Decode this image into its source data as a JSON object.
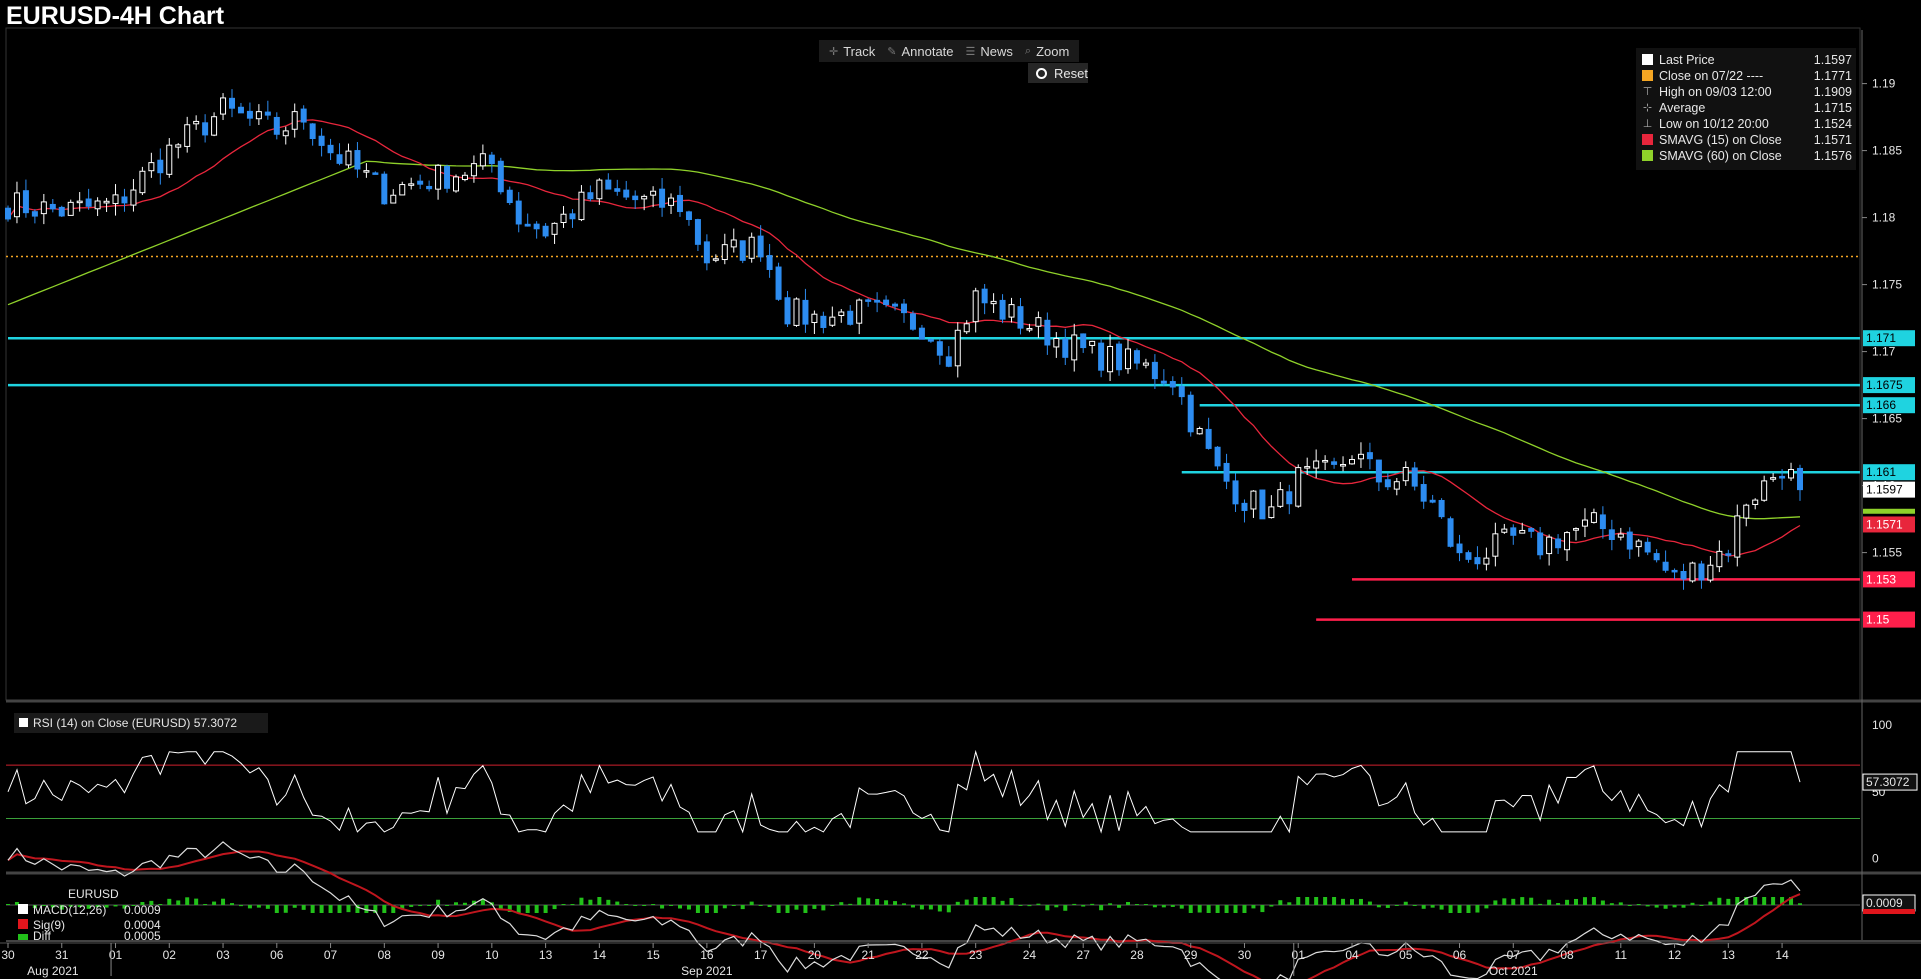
{
  "title": "EURUSD-4H Chart",
  "toolbar": {
    "track": "Track",
    "annotate": "Annotate",
    "news": "News",
    "zoom": "Zoom",
    "reset": "Reset"
  },
  "legend": [
    {
      "label": "Last Price",
      "value": "1.1597",
      "color": "#ffffff",
      "kind": "swatch"
    },
    {
      "label": "Close on 07/22 ----",
      "value": "1.1771",
      "color": "#f5a623",
      "kind": "swatch"
    },
    {
      "label": "High on 09/03 12:00",
      "value": "1.1909",
      "color": "#aaaaaa",
      "kind": "high-icon"
    },
    {
      "label": "Average",
      "value": "1.1715",
      "color": "#aaaaaa",
      "kind": "average-icon"
    },
    {
      "label": "Low on 10/12 20:00",
      "value": "1.1524",
      "color": "#aaaaaa",
      "kind": "low-icon"
    },
    {
      "label": "SMAVG (15)  on Close",
      "value": "1.1571",
      "color": "#e8263c",
      "kind": "swatch"
    },
    {
      "label": "SMAVG (60)  on Close",
      "value": "1.1576",
      "color": "#8fd12a",
      "kind": "swatch"
    }
  ],
  "colors": {
    "up_candle": "#ffffff",
    "down_candle": "#2d8cf0",
    "sma15": "#e8263c",
    "sma60": "#8fd12a",
    "resistance": "#1fd3e0",
    "support": "#ff1f4b",
    "close_line": "#f5a623",
    "panel_divider": "#444444"
  },
  "chart_data": {
    "type": "candlestick",
    "symbol": "EURUSD",
    "timeframe": "4H",
    "ylim": [
      1.144,
      1.194
    ],
    "y_ticks": [
      "1.19",
      "1.185",
      "1.18",
      "1.175",
      "1.17",
      "1.165",
      "1.16",
      "1.155"
    ],
    "x_ticks": [
      {
        "label": "30",
        "index": 0
      },
      {
        "label": "31",
        "index": 6
      },
      {
        "label": "01",
        "index": 12
      },
      {
        "label": "02",
        "index": 18
      },
      {
        "label": "03",
        "index": 24
      },
      {
        "label": "06",
        "index": 30
      },
      {
        "label": "07",
        "index": 36
      },
      {
        "label": "08",
        "index": 42
      },
      {
        "label": "09",
        "index": 48
      },
      {
        "label": "10",
        "index": 54
      },
      {
        "label": "13",
        "index": 60
      },
      {
        "label": "14",
        "index": 66
      },
      {
        "label": "15",
        "index": 72
      },
      {
        "label": "16",
        "index": 78
      },
      {
        "label": "17",
        "index": 84
      },
      {
        "label": "20",
        "index": 90
      },
      {
        "label": "21",
        "index": 96
      },
      {
        "label": "22",
        "index": 102
      },
      {
        "label": "23",
        "index": 108
      },
      {
        "label": "24",
        "index": 114
      },
      {
        "label": "27",
        "index": 120
      },
      {
        "label": "28",
        "index": 126
      },
      {
        "label": "29",
        "index": 132
      },
      {
        "label": "30",
        "index": 138
      },
      {
        "label": "01",
        "index": 144
      },
      {
        "label": "04",
        "index": 150
      },
      {
        "label": "05",
        "index": 156
      },
      {
        "label": "06",
        "index": 162
      },
      {
        "label": "07",
        "index": 168
      },
      {
        "label": "08",
        "index": 174
      },
      {
        "label": "11",
        "index": 180
      },
      {
        "label": "12",
        "index": 186
      },
      {
        "label": "13",
        "index": 192
      },
      {
        "label": "14",
        "index": 198
      }
    ],
    "months": [
      {
        "label": "Aug 2021",
        "index": 3
      },
      {
        "label": "Sep 2021",
        "index": 78
      },
      {
        "label": "Oct 2021",
        "index": 168
      }
    ],
    "month_boundaries": [
      11,
      143
    ],
    "anchors": [
      [
        0,
        1.181
      ],
      [
        6,
        1.1805
      ],
      [
        12,
        1.181
      ],
      [
        18,
        1.185
      ],
      [
        24,
        1.188
      ],
      [
        30,
        1.1865
      ],
      [
        33,
        1.1875
      ],
      [
        36,
        1.185
      ],
      [
        42,
        1.182
      ],
      [
        48,
        1.183
      ],
      [
        54,
        1.184
      ],
      [
        57,
        1.18
      ],
      [
        60,
        1.179
      ],
      [
        66,
        1.182
      ],
      [
        72,
        1.181
      ],
      [
        75,
        1.181
      ],
      [
        78,
        1.177
      ],
      [
        84,
        1.178
      ],
      [
        87,
        1.173
      ],
      [
        90,
        1.1725
      ],
      [
        96,
        1.173
      ],
      [
        102,
        1.172
      ],
      [
        105,
        1.17
      ],
      [
        108,
        1.174
      ],
      [
        114,
        1.172
      ],
      [
        120,
        1.17
      ],
      [
        126,
        1.169
      ],
      [
        130,
        1.168
      ],
      [
        132,
        1.165
      ],
      [
        135,
        1.161
      ],
      [
        138,
        1.159
      ],
      [
        141,
        1.158
      ],
      [
        144,
        1.1605
      ],
      [
        148,
        1.161
      ],
      [
        150,
        1.1625
      ],
      [
        153,
        1.1605
      ],
      [
        156,
        1.1605
      ],
      [
        159,
        1.1585
      ],
      [
        162,
        1.1545
      ],
      [
        165,
        1.155
      ],
      [
        168,
        1.156
      ],
      [
        171,
        1.1555
      ],
      [
        174,
        1.1565
      ],
      [
        177,
        1.157
      ],
      [
        180,
        1.1565
      ],
      [
        183,
        1.155
      ],
      [
        186,
        1.153
      ],
      [
        189,
        1.154
      ],
      [
        192,
        1.1555
      ],
      [
        194,
        1.159
      ],
      [
        196,
        1.16
      ],
      [
        198,
        1.1615
      ],
      [
        200,
        1.1597
      ]
    ],
    "last_price": 1.1597,
    "close_0722": 1.1771,
    "high": {
      "label": "High on 09/03 12:00",
      "value": 1.1909
    },
    "low": {
      "label": "Low on 10/12 20:00",
      "value": 1.1524
    },
    "average": 1.1715,
    "sma15_last": 1.1571,
    "sma60_last": 1.1576,
    "levels": [
      {
        "value": 1.171,
        "label": "1.171",
        "kind": "resistance",
        "from_index": 0
      },
      {
        "value": 1.1675,
        "label": "1.1675",
        "kind": "resistance",
        "from_index": 0
      },
      {
        "value": 1.166,
        "label": "1.166",
        "kind": "resistance",
        "from_index": 133
      },
      {
        "value": 1.161,
        "label": "1.161",
        "kind": "resistance",
        "from_index": 131
      },
      {
        "value": 1.153,
        "label": "1.153",
        "kind": "support",
        "from_index": 150
      },
      {
        "value": 1.15,
        "label": "1.15",
        "kind": "support",
        "from_index": 146
      }
    ],
    "price_tags": [
      {
        "label": "1.1597",
        "value": 1.1597,
        "kind": "last"
      },
      {
        "label": "1.1571",
        "value": 1.1571,
        "kind": "sma15"
      }
    ],
    "rsi": {
      "label": "RSI (14)  on Close (EURUSD) 57.3072",
      "value": 57.3072,
      "value_label": "57.3072",
      "ylim": [
        -10,
        115
      ],
      "y_ticks": [
        "100",
        "50",
        "0"
      ],
      "overbought": 70,
      "oversold": 30
    },
    "macd": {
      "symbol": "EURUSD",
      "macd_label": "MACD(12,26)",
      "macd_value": "0.0009",
      "sig_label": "Sig(9)",
      "sig_value": "0.0004",
      "diff_label": "Diff",
      "diff_value": "0.0005",
      "value_tag": "0.0009"
    }
  }
}
